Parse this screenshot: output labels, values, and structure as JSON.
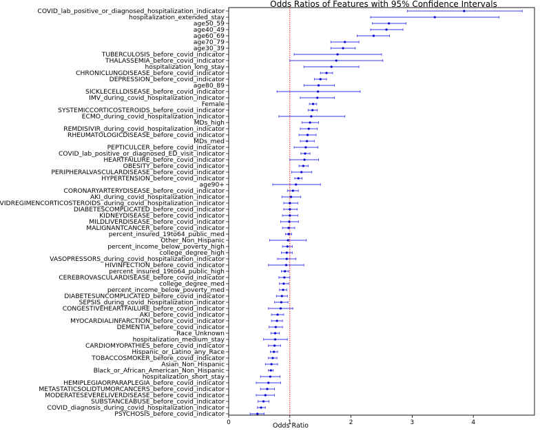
{
  "chart_data": {
    "type": "scatter",
    "title": "Odds Ratios of Features with 95% Confidence Intervals",
    "xlabel": "Odds Ratio",
    "ylabel": "",
    "xlim": [
      0,
      5.0
    ],
    "xticks": [
      "0",
      "1",
      "2",
      "3",
      "4"
    ],
    "reference_line": {
      "x": 1,
      "color": "#ff0000",
      "style": "dotted"
    },
    "colors": {
      "point": "#0000cc",
      "ci": "#3333ee",
      "ref": "#ff0000"
    },
    "grid": false,
    "features": [
      {
        "label": "COVID_lab_positive_or_diagnosed_hospitalization_indicator",
        "or": 3.85,
        "lo": 2.92,
        "hi": 4.8
      },
      {
        "label": "hospitalization_extended_stay",
        "or": 3.37,
        "lo": 2.32,
        "hi": 4.42
      },
      {
        "label": "age50_59",
        "or": 2.62,
        "lo": 2.35,
        "hi": 2.9
      },
      {
        "label": "age40_49",
        "or": 2.58,
        "lo": 2.32,
        "hi": 2.85
      },
      {
        "label": "age60_69",
        "or": 2.37,
        "lo": 2.1,
        "hi": 2.63
      },
      {
        "label": "age70_79",
        "or": 1.9,
        "lo": 1.67,
        "hi": 2.13
      },
      {
        "label": "age30_39",
        "or": 1.87,
        "lo": 1.67,
        "hi": 2.07
      },
      {
        "label": "TUBERCULOSIS_before_covid_indicator",
        "or": 1.78,
        "lo": 1.07,
        "hi": 2.5
      },
      {
        "label": "THALASSEMIA_before_covid_indicator",
        "or": 1.76,
        "lo": 1.0,
        "hi": 2.52
      },
      {
        "label": "hospitalization_long_stay",
        "or": 1.68,
        "lo": 1.23,
        "hi": 2.13
      },
      {
        "label": "CHRONICLUNGDISEASE_before_covid_indicator",
        "or": 1.6,
        "lo": 1.5,
        "hi": 1.7
      },
      {
        "label": "DEPRESSION_before_covid_indicator",
        "or": 1.5,
        "lo": 1.4,
        "hi": 1.6
      },
      {
        "label": "age80_89",
        "or": 1.47,
        "lo": 1.23,
        "hi": 1.73
      },
      {
        "label": "SICKLECELLDISEASE_before_covid_indicator",
        "or": 1.46,
        "lo": 0.79,
        "hi": 2.15
      },
      {
        "label": "IMV_during_covid_hospitalization_indicator",
        "or": 1.45,
        "lo": 1.17,
        "hi": 1.73
      },
      {
        "label": "Female",
        "or": 1.38,
        "lo": 1.32,
        "hi": 1.44
      },
      {
        "label": "SYSTEMICCORTICOSTEROIDS_before_covid_indicator",
        "or": 1.37,
        "lo": 1.3,
        "hi": 1.45
      },
      {
        "label": "ECMO_during_covid_hospitalization_indicator",
        "or": 1.35,
        "lo": 0.82,
        "hi": 1.9
      },
      {
        "label": "MDs_high",
        "or": 1.33,
        "lo": 1.2,
        "hi": 1.47
      },
      {
        "label": "REMDISIVIR_during_covid_hospitalization_indicator",
        "or": 1.31,
        "lo": 1.17,
        "hi": 1.45
      },
      {
        "label": "RHEUMATOLOGICDISEASE_before_covid_indicator",
        "or": 1.29,
        "lo": 1.15,
        "hi": 1.43
      },
      {
        "label": "MDs_med",
        "or": 1.28,
        "lo": 1.17,
        "hi": 1.4
      },
      {
        "label": "PEPTICULCER_before_covid_indicator",
        "or": 1.26,
        "lo": 1.07,
        "hi": 1.46
      },
      {
        "label": "COVID_lab_positive_or_diagnosed_ED_visit_indicator",
        "or": 1.25,
        "lo": 1.18,
        "hi": 1.33
      },
      {
        "label": "HEARTFAILURE_before_covid_indicator",
        "or": 1.24,
        "lo": 1.0,
        "hi": 1.47
      },
      {
        "label": "OBESITY_before_covid_indicator",
        "or": 1.22,
        "lo": 1.15,
        "hi": 1.3
      },
      {
        "label": "PERIPHERALVASCULARDISEASE_before_covid_indicator",
        "or": 1.19,
        "lo": 1.03,
        "hi": 1.36
      },
      {
        "label": "HYPERTENSION_before_covid_indicator",
        "or": 1.14,
        "lo": 1.08,
        "hi": 1.2
      },
      {
        "label": "age90+",
        "or": 1.1,
        "lo": 0.72,
        "hi": 1.5
      },
      {
        "label": "CORONARYARTERYDISEASE_before_covid_indicator",
        "or": 1.05,
        "lo": 0.96,
        "hi": 1.14
      },
      {
        "label": "AKI_during_covid_hospitalization_indicator",
        "or": 1.02,
        "lo": 0.87,
        "hi": 1.18
      },
      {
        "label": "COVIDREGIMENCORTICOSTEROIDS_during_covid_hospitalization_indicator",
        "or": 1.0,
        "lo": 0.9,
        "hi": 1.13
      },
      {
        "label": "DIABETESCOMPLICATED_before_covid_indicator",
        "or": 1.0,
        "lo": 0.9,
        "hi": 1.12
      },
      {
        "label": "KIDNEYDISEASE_before_covid_indicator",
        "or": 1.0,
        "lo": 0.88,
        "hi": 1.13
      },
      {
        "label": "MILDLIVERDISEASE_before_covid_indicator",
        "or": 0.99,
        "lo": 0.85,
        "hi": 1.14
      },
      {
        "label": "MALIGNANTCANCER_before_covid_indicator",
        "or": 0.98,
        "lo": 0.88,
        "hi": 1.08
      },
      {
        "label": "percent_insured_19to64_public_med",
        "or": 0.98,
        "lo": 0.93,
        "hi": 1.03
      },
      {
        "label": "Other_Non_Hispanic",
        "or": 0.97,
        "lo": 0.67,
        "hi": 1.27
      },
      {
        "label": "percent_income_below_poverty_high",
        "or": 0.96,
        "lo": 0.88,
        "hi": 1.04
      },
      {
        "label": "college_degree_high",
        "or": 0.95,
        "lo": 0.86,
        "hi": 1.04
      },
      {
        "label": "VASOPRESSORS_during_covid_hospitalization_indicator",
        "or": 0.95,
        "lo": 0.8,
        "hi": 1.1
      },
      {
        "label": "HIVINFECTION_before_covid_indicator",
        "or": 0.94,
        "lo": 0.65,
        "hi": 1.23
      },
      {
        "label": "percent_insured_19to64_public_high",
        "or": 0.92,
        "lo": 0.86,
        "hi": 0.98
      },
      {
        "label": "CEREBROVASCULARDISEASE_before_covid_indicator",
        "or": 0.91,
        "lo": 0.82,
        "hi": 1.0
      },
      {
        "label": "college_degree_med",
        "or": 0.9,
        "lo": 0.83,
        "hi": 0.98
      },
      {
        "label": "percent_income_below_poverty_med",
        "or": 0.89,
        "lo": 0.83,
        "hi": 0.95
      },
      {
        "label": "DIABETESUNCOMPLICATED_before_covid_indicator",
        "or": 0.87,
        "lo": 0.78,
        "hi": 0.96
      },
      {
        "label": "SEPSIS_during_covid_hospitalization_indicator",
        "or": 0.86,
        "lo": 0.75,
        "hi": 0.97
      },
      {
        "label": "CONGESTIVEHEARTFAILURE_before_covid_indicator",
        "or": 0.85,
        "lo": 0.65,
        "hi": 1.05
      },
      {
        "label": "AKI_before_covid_indicator",
        "or": 0.8,
        "lo": 0.7,
        "hi": 0.9
      },
      {
        "label": "MYOCARDIALINFARCTION_before_covid_indicator",
        "or": 0.79,
        "lo": 0.7,
        "hi": 0.88
      },
      {
        "label": "DEMENTIA_before_covid_indicator",
        "or": 0.77,
        "lo": 0.66,
        "hi": 0.88
      },
      {
        "label": "Race_Unknown",
        "or": 0.76,
        "lo": 0.69,
        "hi": 0.83
      },
      {
        "label": "hospitalization_medium_stay",
        "or": 0.76,
        "lo": 0.57,
        "hi": 0.96
      },
      {
        "label": "CARDIOMYOPATHIES_before_covid_indicator",
        "or": 0.75,
        "lo": 0.65,
        "hi": 0.85
      },
      {
        "label": "Hispanic_or_Latino_any_Race",
        "or": 0.74,
        "lo": 0.68,
        "hi": 0.8
      },
      {
        "label": "TOBACCOSMOKER_before_covid_indicator",
        "or": 0.72,
        "lo": 0.65,
        "hi": 0.79
      },
      {
        "label": "Asian_Non_Hispanic",
        "or": 0.7,
        "lo": 0.6,
        "hi": 0.8
      },
      {
        "label": "Black_or_African_American_Non_Hispanic",
        "or": 0.69,
        "lo": 0.65,
        "hi": 0.73
      },
      {
        "label": "hospitalization_short_stay",
        "or": 0.68,
        "lo": 0.52,
        "hi": 0.84
      },
      {
        "label": "HEMIPLEGIAORPARAPLEGIA_before_covid_indicator",
        "or": 0.65,
        "lo": 0.45,
        "hi": 0.85
      },
      {
        "label": "METASTATICSOLIDTUMORCANCERS_before_covid_indicator",
        "or": 0.63,
        "lo": 0.52,
        "hi": 0.75
      },
      {
        "label": "MODERATESEVERELIVERDISEASE_before_covid_indicator",
        "or": 0.6,
        "lo": 0.45,
        "hi": 0.75
      },
      {
        "label": "SUBSTANCEABUSE_before_covid_indicator",
        "or": 0.57,
        "lo": 0.48,
        "hi": 0.66
      },
      {
        "label": "COVID_diagnosis_during_covid_hospitalization_indicator",
        "or": 0.53,
        "lo": 0.47,
        "hi": 0.6
      },
      {
        "label": "PSYCHOSIS_before_covid_indicator",
        "or": 0.47,
        "lo": 0.35,
        "hi": 0.58
      }
    ]
  }
}
